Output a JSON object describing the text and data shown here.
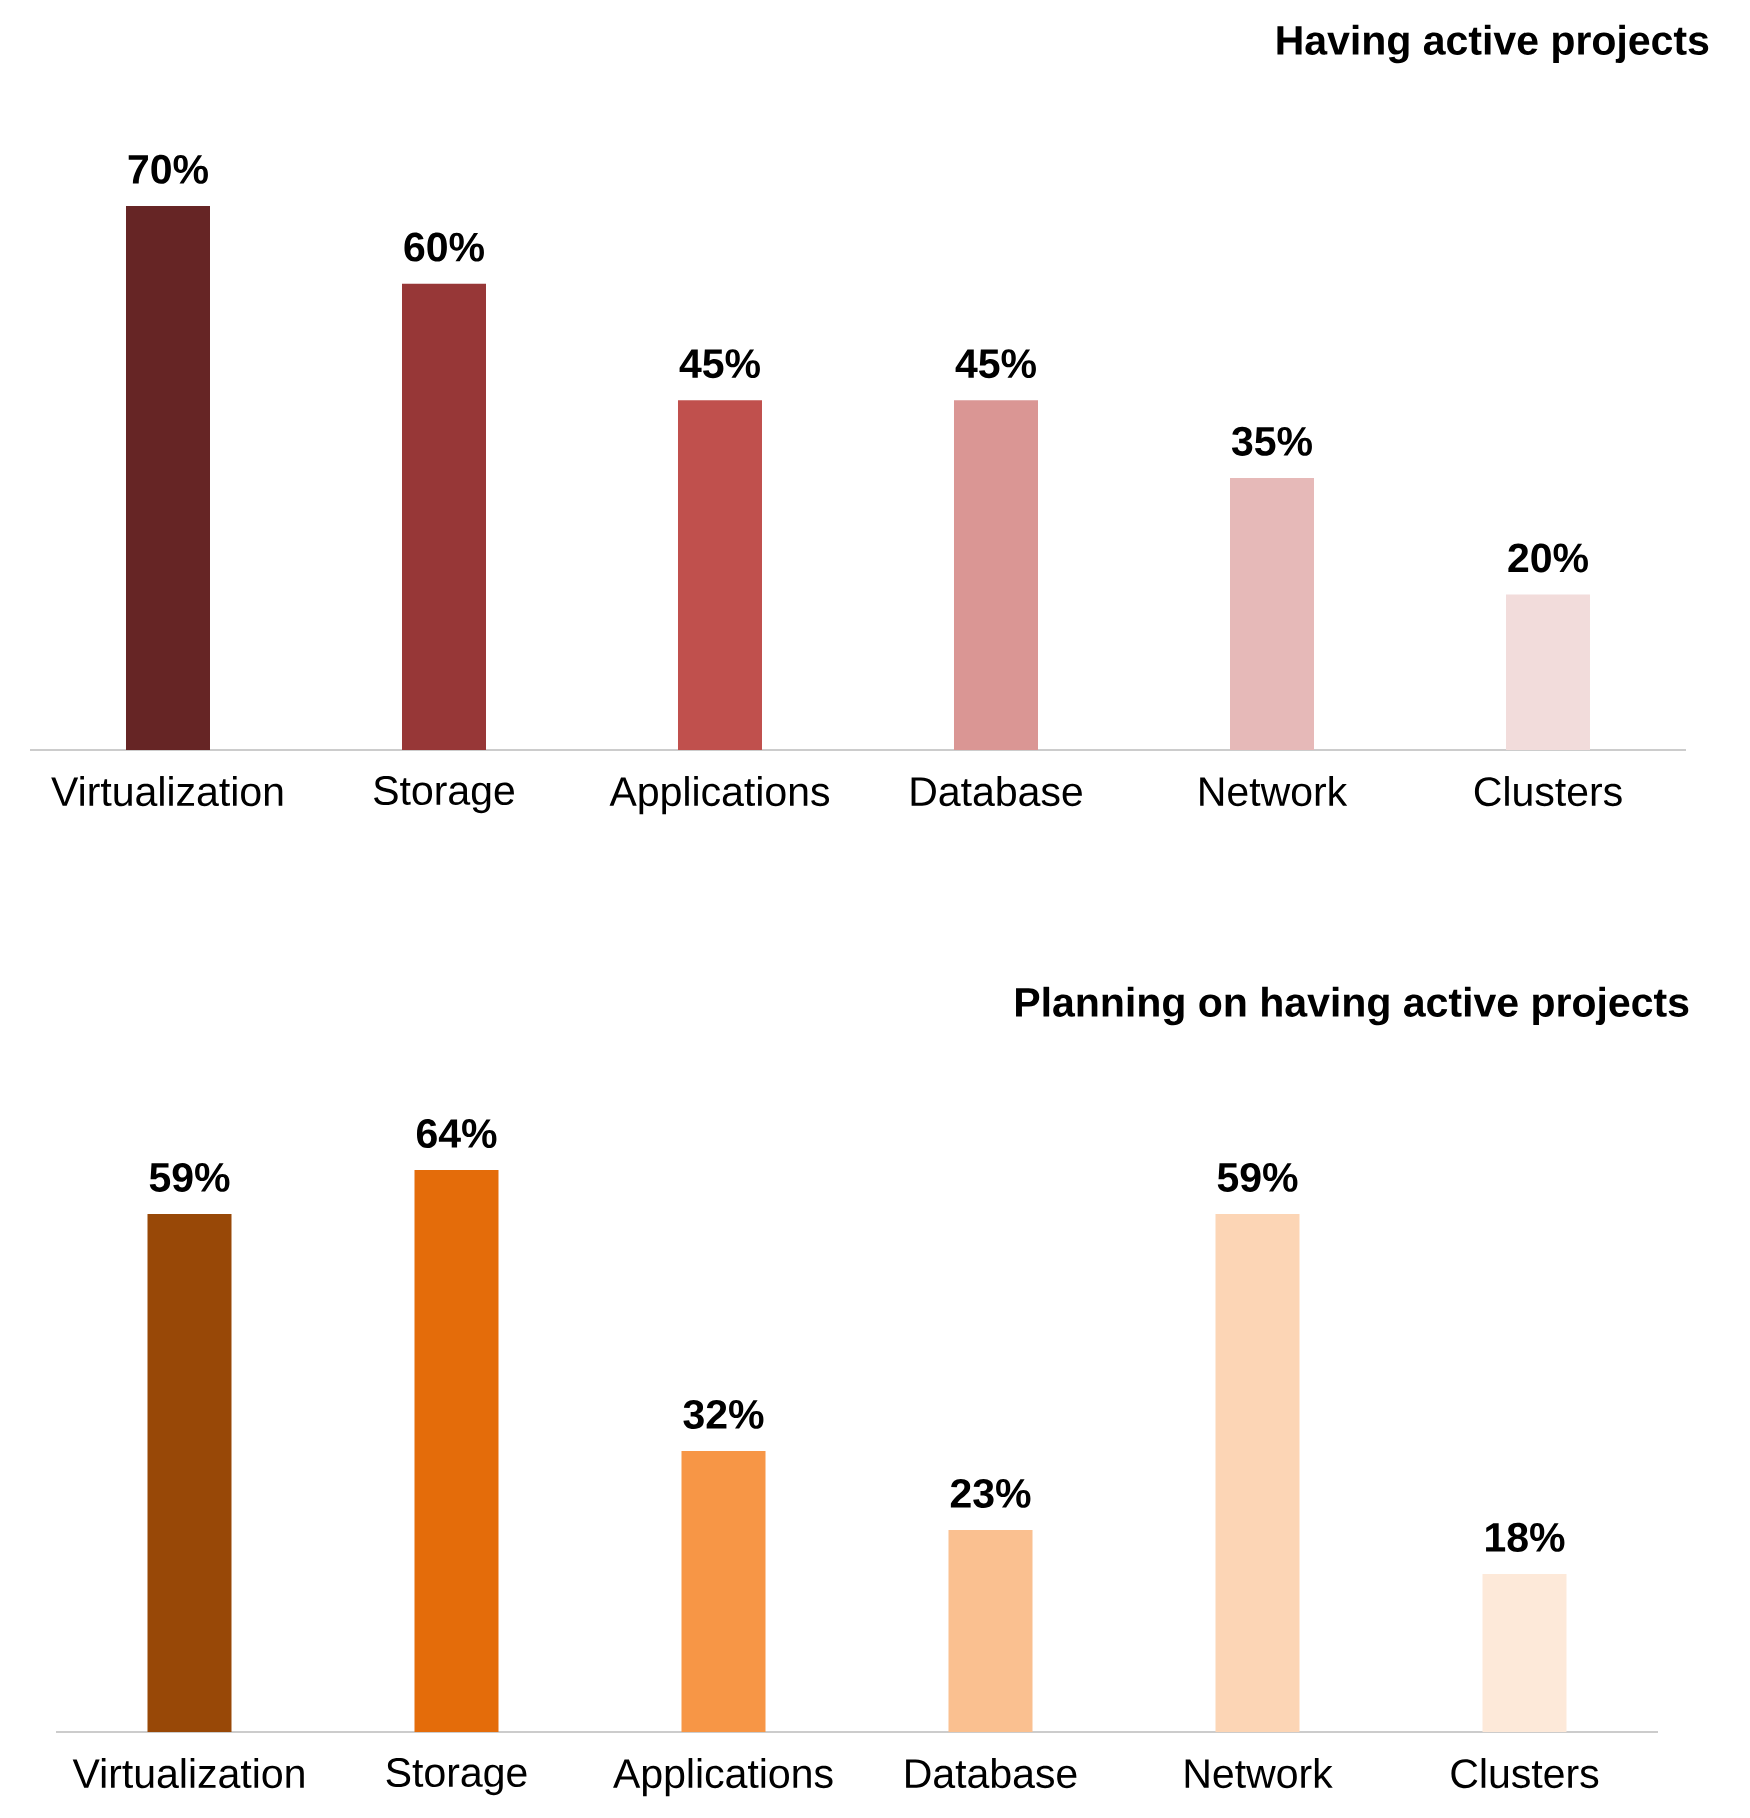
{
  "chart_data": [
    {
      "type": "bar",
      "title": "Having active projects",
      "categories": [
        "Virtualization",
        "Storage",
        "Applications",
        "Database",
        "Network",
        "Clusters"
      ],
      "values": [
        70,
        60,
        45,
        45,
        35,
        20
      ],
      "value_labels": [
        "70%",
        "60%",
        "45%",
        "45%",
        "35%",
        "20%"
      ],
      "colors": [
        "#662525",
        "#973737",
        "#c0504d",
        "#da9694",
        "#e6b9b8",
        "#f2dcdb"
      ]
    },
    {
      "type": "bar",
      "title": "Planning on having active projects",
      "categories": [
        "Virtualization",
        "Storage",
        "Applications",
        "Database",
        "Network",
        "Clusters"
      ],
      "values": [
        59,
        64,
        32,
        23,
        59,
        18
      ],
      "value_labels": [
        "59%",
        "64%",
        "32%",
        "23%",
        "59%",
        "18%"
      ],
      "colors": [
        "#984807",
        "#e46c0a",
        "#f79646",
        "#fac090",
        "#fcd5b5",
        "#fde9d9"
      ]
    }
  ]
}
